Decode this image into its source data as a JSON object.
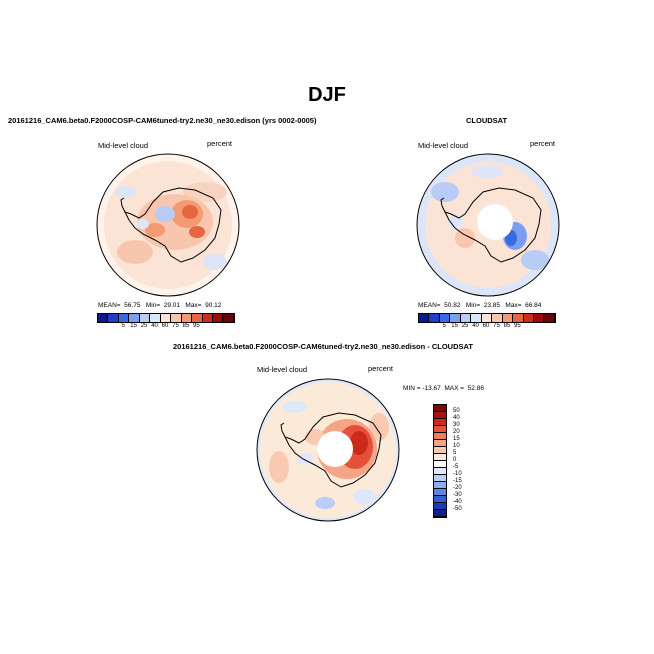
{
  "title": "DJF",
  "panels": {
    "model": {
      "title": "20161216_CAM6.beta0.F2000COSP-CAM6tuned-try2.ne30_ne30.edison (yrs 0002-0005)",
      "left_label": "Mid-level cloud",
      "right_label": "percent",
      "stats": "MEAN=  56.75   Min=  29.01   Max=  90.12",
      "mean": "56.75",
      "min": "29.01",
      "max": "90.12"
    },
    "obs": {
      "title": "CLOUDSAT",
      "left_label": "Mid-level cloud",
      "right_label": "percent",
      "stats": "MEAN=  50.82   Min=  23.85   Max=  66.84",
      "mean": "50.82",
      "min": "23.85",
      "max": "66.84"
    },
    "diff": {
      "title": "20161216_CAM6.beta0.F2000COSP-CAM6tuned-try2.ne30_ne30.edison - CLOUDSAT",
      "left_label": "Mid-level cloud",
      "right_label": "percent",
      "stats": "MIN = -13.67  MAX =  52.86"
    }
  },
  "colorbar_main": {
    "labels": [
      "5",
      "15",
      "25",
      "40",
      "60",
      "75",
      "85",
      "95"
    ],
    "colors": [
      "#0a1a8c",
      "#1f3fc0",
      "#3c68e0",
      "#7a9ef0",
      "#b8ccf5",
      "#dde6f8",
      "#fbe3d6",
      "#f8c6ad",
      "#f29a73",
      "#e6663f",
      "#cc2e1c",
      "#9b0d0d",
      "#6b0505"
    ]
  },
  "colorbar_diff": {
    "labels": [
      "50",
      "40",
      "30",
      "20",
      "15",
      "10",
      "5",
      "0",
      "-5",
      "-10",
      "-15",
      "-20",
      "-30",
      "-40",
      "-50"
    ],
    "colors": [
      "#7a0808",
      "#a81212",
      "#cc2a1a",
      "#e4503a",
      "#ef7a5c",
      "#f5a486",
      "#f9c9b2",
      "#fcead9",
      "#ffffff",
      "#dfe8fa",
      "#b9cdf5",
      "#8eaeef",
      "#5c86e6",
      "#355fd8",
      "#1a3cb8",
      "#0b2290"
    ]
  }
}
